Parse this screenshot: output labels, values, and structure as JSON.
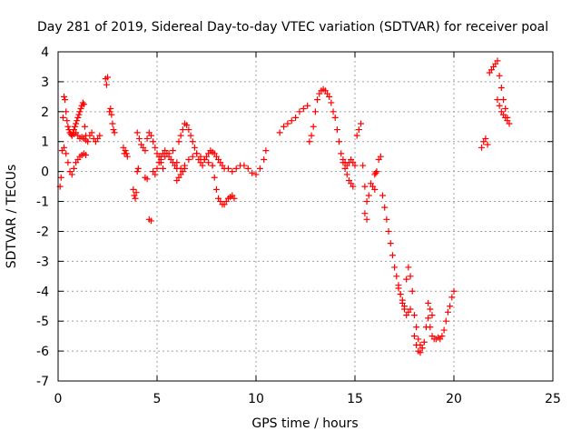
{
  "chart_data": {
    "type": "scatter",
    "title": "Day 281 of 2019, Sidereal Day-to-day VTEC variation (SDTVAR) for receiver poal",
    "xlabel": "GPS time / hours",
    "ylabel": "SDTVAR / TECUs",
    "xlim": [
      0,
      25
    ],
    "ylim": [
      -7,
      4
    ],
    "xticks": [
      0,
      5,
      10,
      15,
      20,
      25
    ],
    "yticks": [
      -7,
      -6,
      -5,
      -4,
      -3,
      -2,
      -1,
      0,
      1,
      2,
      3,
      4
    ],
    "grid": true,
    "marker": "+",
    "series": [
      {
        "name": "SDTVAR",
        "color": "#ff0000",
        "segments": [
          {
            "x": [
              0.1,
              0.15,
              0.2,
              0.25,
              0.3,
              0.35,
              0.4,
              0.45,
              0.5,
              0.55,
              0.6,
              0.65,
              0.7,
              0.75,
              0.8,
              0.85,
              0.9,
              0.95,
              1.0,
              1.05,
              1.1,
              1.15,
              1.2,
              1.25,
              1.3,
              1.35,
              1.4
            ],
            "y": [
              -0.5,
              -0.2,
              0.7,
              1.8,
              2.5,
              2.4,
              2.0,
              1.7,
              1.5,
              1.4,
              1.3,
              1.25,
              1.2,
              1.3,
              1.4,
              1.5,
              1.6,
              1.7,
              1.8,
              1.9,
              2.0,
              2.1,
              2.2,
              2.3,
              2.25,
              1.5,
              1.2
            ]
          },
          {
            "x": [
              0.3,
              0.4,
              0.5,
              0.6,
              0.7,
              0.8,
              0.9,
              1.0,
              1.1,
              1.2,
              1.3,
              1.4
            ],
            "y": [
              0.8,
              0.6,
              0.3,
              0.0,
              -0.1,
              0.1,
              0.3,
              0.4,
              0.5,
              0.55,
              0.6,
              0.55
            ]
          },
          {
            "x": [
              0.7,
              0.8,
              0.9,
              1.0,
              1.1,
              1.2,
              1.3,
              1.4,
              1.5,
              1.6,
              1.7,
              1.8,
              1.9,
              2.0,
              2.1
            ],
            "y": [
              1.2,
              1.25,
              1.3,
              1.2,
              1.1,
              1.15,
              1.1,
              1.05,
              1.0,
              1.2,
              1.3,
              1.1,
              1.0,
              1.1,
              1.2
            ]
          },
          {
            "x": [
              2.4,
              2.45,
              2.5
            ],
            "y": [
              3.1,
              2.9,
              3.15
            ]
          },
          {
            "x": [
              2.6,
              2.65,
              2.7,
              2.75,
              2.8,
              2.85
            ],
            "y": [
              2.0,
              2.1,
              1.9,
              1.6,
              1.4,
              1.3
            ]
          },
          {
            "x": [
              3.3,
              3.35,
              3.4,
              3.45,
              3.5
            ],
            "y": [
              0.8,
              0.6,
              0.7,
              0.6,
              0.5
            ]
          },
          {
            "x": [
              3.8,
              3.85,
              3.9,
              3.95,
              4.0,
              4.05
            ],
            "y": [
              -0.6,
              -0.8,
              -0.9,
              -0.7,
              0.0,
              0.1
            ]
          },
          {
            "x": [
              4.0,
              4.1,
              4.2,
              4.3,
              4.4,
              4.5,
              4.6,
              4.7,
              4.8,
              4.9,
              5.0,
              5.1,
              5.2,
              5.3
            ],
            "y": [
              1.3,
              1.1,
              0.9,
              0.8,
              0.7,
              1.1,
              1.3,
              1.2,
              1.0,
              0.8,
              0.6,
              0.5,
              0.3,
              0.1
            ]
          },
          {
            "x": [
              4.4,
              4.5
            ],
            "y": [
              -0.2,
              -0.25
            ]
          },
          {
            "x": [
              4.6,
              4.7
            ],
            "y": [
              -1.6,
              -1.65
            ]
          },
          {
            "x": [
              4.8,
              4.9,
              5.0,
              5.1,
              5.2,
              5.3,
              5.4,
              5.5,
              5.6,
              5.7,
              5.8,
              5.9,
              6.0
            ],
            "y": [
              0.0,
              -0.1,
              0.1,
              0.3,
              0.5,
              0.6,
              0.7,
              0.6,
              0.5,
              0.4,
              0.3,
              0.2,
              0.1
            ]
          },
          {
            "x": [
              5.2,
              5.4,
              5.6,
              5.8,
              6.0,
              6.2,
              6.4,
              6.6,
              6.8,
              7.0,
              7.2,
              7.4,
              7.6,
              7.8
            ],
            "y": [
              0.4,
              0.5,
              0.6,
              0.7,
              0.3,
              0.1,
              0.2,
              0.4,
              0.5,
              0.6,
              0.5,
              0.4,
              0.3,
              0.2
            ]
          },
          {
            "x": [
              6.1,
              6.2,
              6.3,
              6.4,
              6.5,
              6.6,
              6.7,
              6.8,
              6.9,
              7.0,
              7.1,
              7.2,
              7.3,
              7.4,
              7.5,
              7.6,
              7.7,
              7.8,
              7.9,
              8.0,
              8.1,
              8.2,
              8.3,
              8.4
            ],
            "y": [
              1.0,
              1.2,
              1.4,
              1.6,
              1.55,
              1.4,
              1.2,
              1.0,
              0.8,
              0.6,
              0.4,
              0.3,
              0.2,
              0.4,
              0.5,
              0.6,
              0.7,
              0.65,
              0.6,
              0.5,
              0.4,
              0.3,
              0.2,
              0.1
            ]
          },
          {
            "x": [
              6.0,
              6.1,
              6.2,
              6.3,
              6.4
            ],
            "y": [
              -0.3,
              -0.2,
              -0.1,
              0.0,
              0.1
            ]
          },
          {
            "x": [
              7.8,
              7.9,
              8.0,
              8.1,
              8.2,
              8.3,
              8.4,
              8.5,
              8.6,
              8.7,
              8.8,
              8.9
            ],
            "y": [
              0.2,
              -0.2,
              -0.6,
              -0.9,
              -1.0,
              -1.1,
              -1.1,
              -1.0,
              -0.9,
              -0.85,
              -0.8,
              -0.9
            ]
          },
          {
            "x": [
              8.6,
              8.8,
              9.0,
              9.2,
              9.4,
              9.6,
              9.8,
              10.0,
              10.2,
              10.4,
              10.5
            ],
            "y": [
              0.1,
              0.0,
              0.1,
              0.2,
              0.2,
              0.1,
              -0.05,
              -0.1,
              0.1,
              0.4,
              0.7
            ]
          },
          {
            "x": [
              11.2,
              11.4,
              11.6,
              11.8,
              12.0,
              12.2,
              12.4,
              12.6
            ],
            "y": [
              1.3,
              1.5,
              1.6,
              1.7,
              1.8,
              2.0,
              2.1,
              2.2
            ]
          },
          {
            "x": [
              12.7,
              12.8,
              12.9,
              13.0,
              13.1,
              13.2,
              13.3,
              13.4,
              13.5,
              13.6,
              13.7,
              13.8,
              13.9,
              14.0,
              14.1,
              14.2,
              14.3,
              14.4,
              14.5,
              14.6,
              14.7,
              14.8,
              14.9
            ],
            "y": [
              1.0,
              1.2,
              1.5,
              2.0,
              2.4,
              2.6,
              2.7,
              2.75,
              2.7,
              2.6,
              2.5,
              2.3,
              2.0,
              1.8,
              1.4,
              1.0,
              0.6,
              0.3,
              0.1,
              -0.1,
              -0.3,
              -0.4,
              -0.5
            ]
          },
          {
            "x": [
              14.4,
              14.5,
              14.6,
              14.7,
              14.8,
              14.9,
              15.0
            ],
            "y": [
              0.4,
              0.3,
              0.2,
              0.3,
              0.4,
              0.3,
              0.2
            ]
          },
          {
            "x": [
              15.1,
              15.2,
              15.3
            ],
            "y": [
              1.2,
              1.4,
              1.6
            ]
          },
          {
            "x": [
              15.4,
              15.5,
              15.6,
              15.7,
              15.8,
              15.9,
              16.0,
              16.1,
              16.2,
              16.3,
              16.4,
              16.5,
              16.6,
              16.7,
              16.8,
              16.9,
              17.0,
              17.1,
              17.2,
              17.3,
              17.4,
              17.5,
              17.6,
              17.7,
              17.8
            ],
            "y": [
              0.2,
              -0.5,
              -1.0,
              -0.8,
              -0.4,
              -0.5,
              -0.6,
              0.0,
              0.4,
              0.5,
              -0.8,
              -1.2,
              -1.6,
              -2.0,
              -2.4,
              -2.8,
              -3.2,
              -3.5,
              -3.8,
              -4.1,
              -4.4,
              -4.6,
              -4.8,
              -4.7,
              -4.6
            ]
          },
          {
            "x": [
              15.5,
              15.6
            ],
            "y": [
              -1.4,
              -1.6
            ]
          },
          {
            "x": [
              16.0,
              16.05
            ],
            "y": [
              -0.1,
              -0.05
            ]
          },
          {
            "x": [
              17.2,
              17.3,
              17.4,
              17.5,
              17.6,
              17.7,
              17.8,
              17.9,
              18.0,
              18.1,
              18.2,
              18.3,
              18.4
            ],
            "y": [
              -3.9,
              -4.1,
              -4.3,
              -4.5,
              -3.6,
              -3.2,
              -3.5,
              -4.0,
              -4.8,
              -5.2,
              -5.6,
              -5.8,
              -5.9
            ]
          },
          {
            "x": [
              18.0,
              18.1,
              18.2,
              18.3,
              18.4,
              18.5,
              18.6,
              18.7,
              18.8,
              18.9,
              19.0,
              19.1,
              19.2,
              19.3,
              19.4,
              19.5,
              19.6,
              19.7,
              19.8,
              19.9,
              20.0
            ],
            "y": [
              -5.5,
              -5.8,
              -6.0,
              -6.05,
              -5.9,
              -5.7,
              -5.2,
              -4.9,
              -5.2,
              -5.5,
              -5.6,
              -5.6,
              -5.55,
              -5.6,
              -5.5,
              -5.3,
              -5.0,
              -4.7,
              -4.5,
              -4.2,
              -4.0
            ]
          },
          {
            "x": [
              18.7,
              18.8,
              18.9
            ],
            "y": [
              -4.4,
              -4.6,
              -4.8
            ]
          },
          {
            "x": [
              21.4,
              21.5,
              21.6,
              21.7
            ],
            "y": [
              0.8,
              1.0,
              1.1,
              0.9
            ]
          },
          {
            "x": [
              21.8,
              21.9,
              22.0,
              22.1,
              22.2,
              22.3,
              22.4,
              22.5,
              22.6,
              22.7,
              22.8
            ],
            "y": [
              3.3,
              3.4,
              3.5,
              3.6,
              3.7,
              3.2,
              2.8,
              2.4,
              2.1,
              1.8,
              1.6
            ]
          },
          {
            "x": [
              22.2,
              22.3,
              22.4,
              22.5,
              22.6,
              22.7
            ],
            "y": [
              2.4,
              2.2,
              2.0,
              1.9,
              1.8,
              1.7
            ]
          }
        ]
      }
    ]
  }
}
